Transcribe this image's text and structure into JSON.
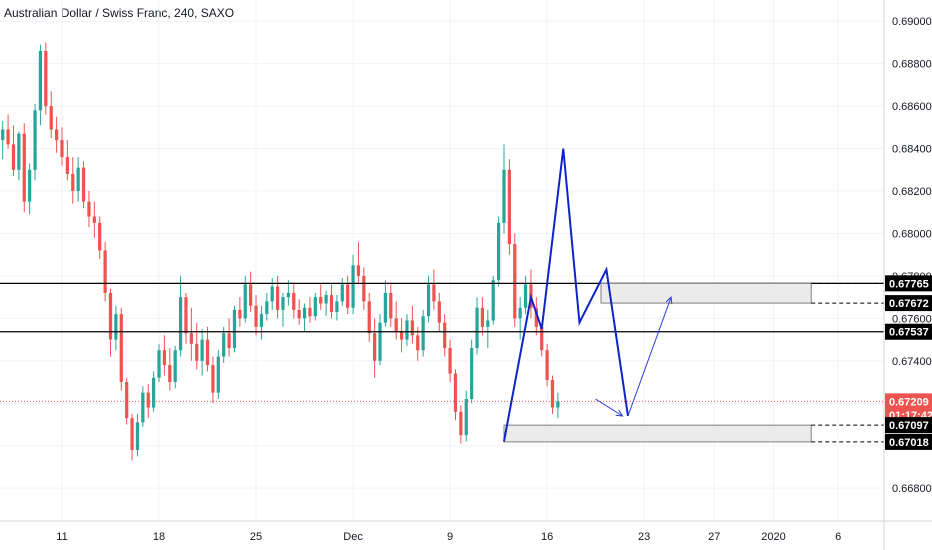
{
  "chart_data": {
    "type": "candlestick",
    "title": "Australian Dollar / Swiss Franc, 240, SAXO",
    "symbol": "Australian Dollar / Swiss Franc",
    "interval": "240",
    "exchange": "SAXO",
    "ylim": [
      0.6665,
      0.691
    ],
    "y_ticks": [
      "0.66800",
      "0.67000",
      "0.67200",
      "0.67400",
      "0.67600",
      "0.67800",
      "0.68000",
      "0.68200",
      "0.68400",
      "0.68600",
      "0.68800",
      "0.69000"
    ],
    "x_ticks": [
      {
        "label": "11",
        "index": 11
      },
      {
        "label": "18",
        "index": 29
      },
      {
        "label": "25",
        "index": 47
      },
      {
        "label": "Dec",
        "index": 65
      },
      {
        "label": "9",
        "index": 83
      },
      {
        "label": "16",
        "index": 101
      },
      {
        "label": "23",
        "index": 119
      },
      {
        "label": "27",
        "index": 132
      },
      {
        "label": "2020",
        "index": 143
      },
      {
        "label": "6",
        "index": 155
      }
    ],
    "x_count": 164,
    "grid": true,
    "colors": {
      "up": "#26a69a",
      "down": "#ef5350",
      "pattern": "#0d24c7",
      "arrow": "#2f3fd1",
      "price": "#ef5350",
      "box_fill": "#ebebeb",
      "box_stroke": "#808080"
    },
    "ohlc": [
      [
        0.6844,
        0.6853,
        0.6835,
        0.6849
      ],
      [
        0.6849,
        0.6856,
        0.684,
        0.6842
      ],
      [
        0.6842,
        0.6851,
        0.6827,
        0.683
      ],
      [
        0.683,
        0.6848,
        0.6825,
        0.6847
      ],
      [
        0.6847,
        0.6852,
        0.681,
        0.6815
      ],
      [
        0.6815,
        0.6833,
        0.6809,
        0.683
      ],
      [
        0.683,
        0.6861,
        0.6825,
        0.6858
      ],
      [
        0.6858,
        0.6889,
        0.6851,
        0.6886
      ],
      [
        0.6886,
        0.689,
        0.6856,
        0.686
      ],
      [
        0.686,
        0.6867,
        0.6845,
        0.6849
      ],
      [
        0.6849,
        0.6855,
        0.6838,
        0.6844
      ],
      [
        0.6844,
        0.685,
        0.6832,
        0.6836
      ],
      [
        0.6836,
        0.6844,
        0.6825,
        0.6828
      ],
      [
        0.6828,
        0.6836,
        0.6814,
        0.682
      ],
      [
        0.682,
        0.6836,
        0.6815,
        0.6831
      ],
      [
        0.6831,
        0.6834,
        0.6812,
        0.6815
      ],
      [
        0.6815,
        0.682,
        0.6803,
        0.6808
      ],
      [
        0.6808,
        0.6815,
        0.6798,
        0.6805
      ],
      [
        0.6805,
        0.6808,
        0.6788,
        0.6792
      ],
      [
        0.6792,
        0.6796,
        0.6768,
        0.6772
      ],
      [
        0.6772,
        0.6774,
        0.6742,
        0.675
      ],
      [
        0.675,
        0.6766,
        0.6745,
        0.6762
      ],
      [
        0.6762,
        0.6765,
        0.6726,
        0.673
      ],
      [
        0.673,
        0.6732,
        0.671,
        0.6713
      ],
      [
        0.6713,
        0.6715,
        0.6693,
        0.6698
      ],
      [
        0.6698,
        0.6715,
        0.6695,
        0.6711
      ],
      [
        0.6711,
        0.6728,
        0.6709,
        0.6725
      ],
      [
        0.6725,
        0.6729,
        0.6713,
        0.6718
      ],
      [
        0.6718,
        0.6735,
        0.6716,
        0.6732
      ],
      [
        0.6732,
        0.6748,
        0.673,
        0.6745
      ],
      [
        0.6745,
        0.6752,
        0.6733,
        0.6738
      ],
      [
        0.6738,
        0.6746,
        0.6726,
        0.673
      ],
      [
        0.673,
        0.6747,
        0.6727,
        0.6745
      ],
      [
        0.6745,
        0.678,
        0.6742,
        0.677
      ],
      [
        0.677,
        0.6772,
        0.6748,
        0.6753
      ],
      [
        0.6753,
        0.6765,
        0.674,
        0.6748
      ],
      [
        0.6748,
        0.6758,
        0.6736,
        0.674
      ],
      [
        0.674,
        0.6755,
        0.6733,
        0.675
      ],
      [
        0.675,
        0.6756,
        0.6735,
        0.6738
      ],
      [
        0.6738,
        0.6742,
        0.672,
        0.6725
      ],
      [
        0.6725,
        0.6745,
        0.6722,
        0.6742
      ],
      [
        0.6742,
        0.6756,
        0.6739,
        0.6753
      ],
      [
        0.6753,
        0.676,
        0.6742,
        0.6746
      ],
      [
        0.6746,
        0.6766,
        0.6744,
        0.6764
      ],
      [
        0.6764,
        0.677,
        0.6756,
        0.676
      ],
      [
        0.676,
        0.678,
        0.6758,
        0.6776
      ],
      [
        0.6776,
        0.6782,
        0.6763,
        0.6766
      ],
      [
        0.6766,
        0.6771,
        0.6752,
        0.6756
      ],
      [
        0.6756,
        0.6766,
        0.675,
        0.6762
      ],
      [
        0.6762,
        0.6772,
        0.6759,
        0.6768
      ],
      [
        0.6768,
        0.6779,
        0.6764,
        0.6775
      ],
      [
        0.6775,
        0.678,
        0.676,
        0.6764
      ],
      [
        0.6764,
        0.6772,
        0.6756,
        0.677
      ],
      [
        0.677,
        0.6778,
        0.6766,
        0.6772
      ],
      [
        0.6772,
        0.6776,
        0.676,
        0.6764
      ],
      [
        0.6764,
        0.6769,
        0.6757,
        0.676
      ],
      [
        0.676,
        0.6767,
        0.6754,
        0.6765
      ],
      [
        0.6765,
        0.677,
        0.6758,
        0.6761
      ],
      [
        0.6761,
        0.6772,
        0.6759,
        0.677
      ],
      [
        0.677,
        0.6776,
        0.6764,
        0.6767
      ],
      [
        0.6767,
        0.6773,
        0.6761,
        0.6771
      ],
      [
        0.6771,
        0.6776,
        0.676,
        0.6763
      ],
      [
        0.6763,
        0.6771,
        0.6759,
        0.6768
      ],
      [
        0.6768,
        0.6779,
        0.6766,
        0.6776
      ],
      [
        0.6776,
        0.678,
        0.6762,
        0.6765
      ],
      [
        0.6765,
        0.679,
        0.6762,
        0.6785
      ],
      [
        0.6785,
        0.6796,
        0.6776,
        0.678
      ],
      [
        0.678,
        0.6784,
        0.6764,
        0.6768
      ],
      [
        0.6768,
        0.6772,
        0.6749,
        0.6753
      ],
      [
        0.6753,
        0.676,
        0.6732,
        0.674
      ],
      [
        0.674,
        0.6762,
        0.6738,
        0.6758
      ],
      [
        0.6758,
        0.6778,
        0.6756,
        0.6772
      ],
      [
        0.6772,
        0.6776,
        0.6756,
        0.676
      ],
      [
        0.676,
        0.6768,
        0.675,
        0.6754
      ],
      [
        0.6754,
        0.676,
        0.6744,
        0.675
      ],
      [
        0.675,
        0.6762,
        0.6747,
        0.6759
      ],
      [
        0.6759,
        0.6766,
        0.6748,
        0.6752
      ],
      [
        0.6752,
        0.6756,
        0.674,
        0.6745
      ],
      [
        0.6745,
        0.6764,
        0.6742,
        0.6761
      ],
      [
        0.6761,
        0.678,
        0.6758,
        0.6776
      ],
      [
        0.6776,
        0.6783,
        0.6764,
        0.6768
      ],
      [
        0.6768,
        0.6772,
        0.6754,
        0.6758
      ],
      [
        0.6758,
        0.6762,
        0.6742,
        0.6746
      ],
      [
        0.6746,
        0.675,
        0.673,
        0.6734
      ],
      [
        0.6734,
        0.6736,
        0.6712,
        0.6716
      ],
      [
        0.6716,
        0.6719,
        0.6701,
        0.6705
      ],
      [
        0.6705,
        0.6726,
        0.6702,
        0.6722
      ],
      [
        0.6722,
        0.675,
        0.672,
        0.6746
      ],
      [
        0.6746,
        0.677,
        0.6743,
        0.6765
      ],
      [
        0.6765,
        0.677,
        0.6752,
        0.6756
      ],
      [
        0.6756,
        0.6764,
        0.6746,
        0.6759
      ],
      [
        0.6759,
        0.678,
        0.6757,
        0.6778
      ],
      [
        0.6778,
        0.6808,
        0.6775,
        0.6805
      ],
      [
        0.6805,
        0.6842,
        0.68,
        0.683
      ],
      [
        0.683,
        0.6835,
        0.679,
        0.6795
      ],
      [
        0.6795,
        0.68,
        0.6756,
        0.676
      ],
      [
        0.676,
        0.677,
        0.675,
        0.6765
      ],
      [
        0.6765,
        0.678,
        0.6762,
        0.6776
      ],
      [
        0.6776,
        0.6783,
        0.676,
        0.6765
      ],
      [
        0.6765,
        0.677,
        0.6752,
        0.6756
      ],
      [
        0.6756,
        0.6758,
        0.6742,
        0.6745
      ],
      [
        0.6745,
        0.6748,
        0.6728,
        0.6731
      ],
      [
        0.6731,
        0.6733,
        0.6715,
        0.6718
      ],
      [
        0.6718,
        0.6725,
        0.6713,
        0.67209
      ]
    ],
    "horizontal_lines": [
      {
        "price": 0.67765,
        "label": "0.67765",
        "style": "solid"
      },
      {
        "price": 0.67537,
        "label": "0.67537",
        "style": "solid"
      }
    ],
    "price_labels": [
      {
        "label": "0.67765",
        "price": 0.67765,
        "style": "box-black"
      },
      {
        "label": "0.67672",
        "price": 0.67672,
        "style": "box-black"
      },
      {
        "label": "0.67537",
        "price": 0.67537,
        "style": "box-black"
      },
      {
        "label": "0.67209",
        "price": 0.67209,
        "style": "box-red"
      },
      {
        "label": "01:17:42",
        "price": 0.67145,
        "style": "box-red"
      },
      {
        "label": "0.67097",
        "price": 0.67097,
        "style": "box-black"
      },
      {
        "label": "0.67018",
        "price": 0.67018,
        "style": "box-black"
      }
    ],
    "current_price": 0.67209,
    "countdown": "01:17:42",
    "zones": [
      {
        "top": 0.67765,
        "bottom": 0.67672,
        "from_index": 111,
        "to_index": 150
      },
      {
        "top": 0.67097,
        "bottom": 0.67018,
        "from_index": 93,
        "to_index": 150
      }
    ],
    "pattern_path": [
      [
        93,
        0.6702
      ],
      [
        98,
        0.677
      ],
      [
        100,
        0.6755
      ],
      [
        104,
        0.684
      ],
      [
        107,
        0.6758
      ],
      [
        112,
        0.6783
      ],
      [
        116,
        0.6714
      ]
    ],
    "projection_arrows": [
      {
        "from": [
          116,
          0.6714
        ],
        "to": [
          124,
          0.677
        ]
      },
      {
        "from": [
          110,
          0.6722
        ],
        "to": [
          115,
          0.6714
        ]
      }
    ]
  }
}
